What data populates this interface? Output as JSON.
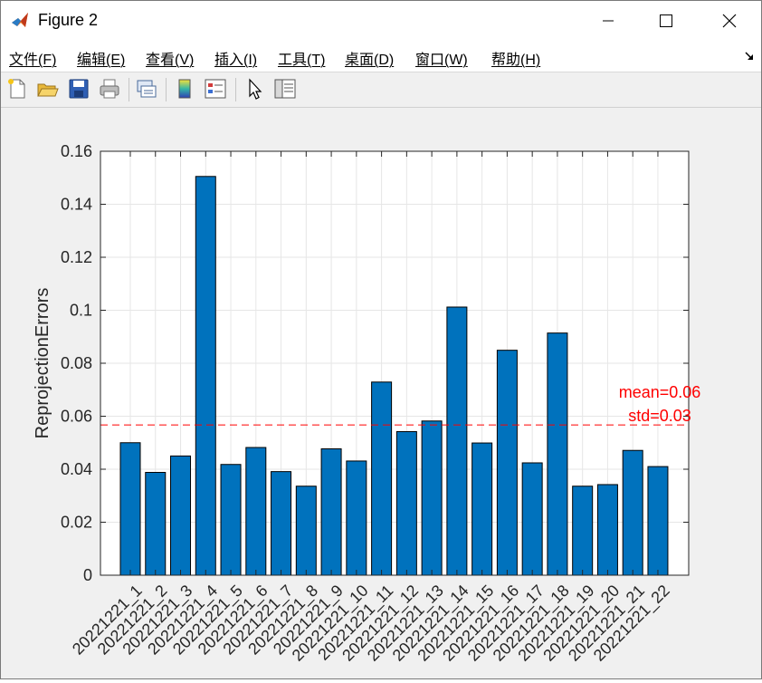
{
  "window": {
    "title": "Figure 2"
  },
  "menu": {
    "items": [
      "文件(F)",
      "编辑(E)",
      "查看(V)",
      "插入(I)",
      "工具(T)",
      "桌面(D)",
      "窗口(W)",
      "帮助(H)"
    ]
  },
  "toolbar": {
    "icons": [
      "new-figure-icon",
      "open-file-icon",
      "save-icon",
      "print-icon",
      "link-icon",
      "colorbar-icon",
      "legend-icon",
      "pointer-icon",
      "property-inspector-icon"
    ]
  },
  "colors": {
    "bar": "#0072bd",
    "mean_line": "#ff0000",
    "annotation": "#ff0000"
  },
  "chart_data": {
    "type": "bar",
    "ylabel": "ReprojectionErrors",
    "ylim": [
      0,
      0.16
    ],
    "yticks": [
      "0",
      "0.02",
      "0.04",
      "0.06",
      "0.08",
      "0.1",
      "0.12",
      "0.14",
      "0.16"
    ],
    "grid": true,
    "categories": [
      "20221221_1",
      "20221221_2",
      "20221221_3",
      "20221221_4",
      "20221221_5",
      "20221221_6",
      "20221221_7",
      "20221221_8",
      "20221221_9",
      "20221221_10",
      "20221221_11",
      "20221221_12",
      "20221221_13",
      "20221221_14",
      "20221221_15",
      "20221221_16",
      "20221221_17",
      "20221221_18",
      "20221221_19",
      "20221221_20",
      "20221221_21",
      "20221221_22"
    ],
    "values": [
      0.05,
      0.0388,
      0.045,
      0.1505,
      0.0418,
      0.0482,
      0.0391,
      0.0336,
      0.0477,
      0.0431,
      0.0729,
      0.0542,
      0.0582,
      0.1012,
      0.0499,
      0.0849,
      0.0424,
      0.0914,
      0.0336,
      0.0342,
      0.0471,
      0.041
    ],
    "mean_line": 0.0567,
    "annotations": [
      "mean=0.06",
      "std=0.03"
    ]
  }
}
